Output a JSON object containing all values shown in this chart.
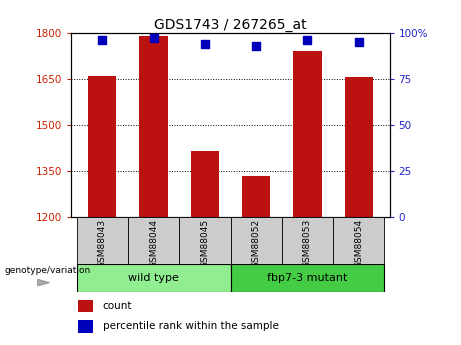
{
  "title": "GDS1743 / 267265_at",
  "categories": [
    "GSM88043",
    "GSM88044",
    "GSM88045",
    "GSM88052",
    "GSM88053",
    "GSM88054"
  ],
  "count_values": [
    1660,
    1790,
    1415,
    1335,
    1740,
    1655
  ],
  "percentile_values": [
    96,
    97,
    94,
    93,
    96,
    95
  ],
  "ylim_left": [
    1200,
    1800
  ],
  "ylim_right": [
    0,
    100
  ],
  "yticks_left": [
    1200,
    1350,
    1500,
    1650,
    1800
  ],
  "yticks_right": [
    0,
    25,
    50,
    75,
    100
  ],
  "bar_color": "#bb1111",
  "scatter_color": "#0000bb",
  "bar_width": 0.55,
  "group_label": "genotype/variation",
  "legend_count_label": "count",
  "legend_percentile_label": "percentile rank within the sample",
  "left_tick_color": "#cc2200",
  "right_tick_color": "#2222cc",
  "tick_box_color": "#cccccc",
  "wt_color": "#90ee90",
  "mut_color": "#44cc44"
}
